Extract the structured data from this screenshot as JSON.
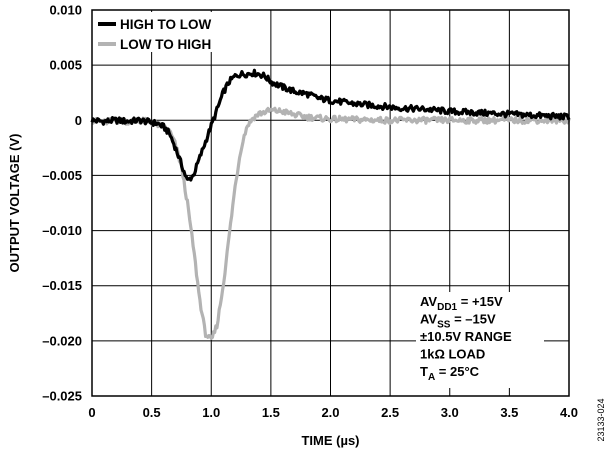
{
  "figure_id": "23133-024",
  "chart_data": {
    "type": "line",
    "xlabel": "TIME (µs)",
    "ylabel": "OUTPUT VOLTAGE (V)",
    "xlim": [
      0,
      4.0
    ],
    "ylim": [
      -0.025,
      0.01
    ],
    "x_ticks": [
      0,
      0.5,
      1.0,
      1.5,
      2.0,
      2.5,
      3.0,
      3.5,
      4.0
    ],
    "x_tick_labels": [
      "0",
      "0.5",
      "1.0",
      "1.5",
      "2.0",
      "2.5",
      "3.0",
      "3.5",
      "4.0"
    ],
    "y_ticks": [
      0.01,
      0.005,
      0,
      -0.005,
      -0.01,
      -0.015,
      -0.02,
      -0.025
    ],
    "y_tick_labels": [
      "0.010",
      "0.005",
      "0",
      "–0.005",
      "–0.010",
      "–0.015",
      "–0.020",
      "–0.025"
    ],
    "grid": true,
    "legend_position": "top-left",
    "series": [
      {
        "name": "HIGH TO LOW",
        "color": "#000000",
        "x": [
          0,
          0.1,
          0.2,
          0.3,
          0.4,
          0.5,
          0.55,
          0.6,
          0.65,
          0.7,
          0.75,
          0.8,
          0.85,
          0.9,
          0.95,
          1.0,
          1.05,
          1.1,
          1.15,
          1.2,
          1.25,
          1.3,
          1.35,
          1.4,
          1.45,
          1.5,
          1.6,
          1.7,
          1.8,
          1.9,
          2.0,
          2.2,
          2.4,
          2.6,
          2.8,
          3.0,
          3.2,
          3.4,
          3.6,
          3.8,
          4.0
        ],
        "y": [
          0,
          -0.0001,
          0,
          -0.0001,
          0,
          -0.0002,
          -0.0003,
          -0.0006,
          -0.0012,
          -0.0025,
          -0.004,
          -0.0055,
          -0.005,
          -0.0035,
          -0.002,
          -0.0005,
          0.001,
          0.0025,
          0.0035,
          0.004,
          0.0042,
          0.0042,
          0.0043,
          0.0042,
          0.004,
          0.0035,
          0.003,
          0.0026,
          0.0024,
          0.002,
          0.0018,
          0.0015,
          0.0013,
          0.0011,
          0.001,
          0.0008,
          0.0007,
          0.0006,
          0.0005,
          0.0004,
          0.0003
        ]
      },
      {
        "name": "LOW TO HIGH",
        "color": "#b3b3b3",
        "x": [
          0,
          0.1,
          0.2,
          0.3,
          0.4,
          0.5,
          0.6,
          0.65,
          0.7,
          0.75,
          0.8,
          0.85,
          0.9,
          0.95,
          1.0,
          1.05,
          1.1,
          1.15,
          1.2,
          1.25,
          1.3,
          1.35,
          1.4,
          1.5,
          1.6,
          1.7,
          1.8,
          2.0,
          2.5,
          3.0,
          3.5,
          4.0
        ],
        "y": [
          0,
          -0.0002,
          0,
          -0.0001,
          0,
          -0.0002,
          -0.0006,
          -0.001,
          -0.0022,
          -0.0042,
          -0.0075,
          -0.0115,
          -0.016,
          -0.0193,
          -0.02,
          -0.0185,
          -0.015,
          -0.0105,
          -0.006,
          -0.0025,
          -0.0005,
          0.0002,
          0.0006,
          0.0009,
          0.0008,
          0.0005,
          0.0003,
          0.0001,
          0,
          0,
          0,
          0
        ]
      }
    ],
    "annotations": [
      {
        "text": "AVDD1 = +15V",
        "main": "AV",
        "sub": "DD1",
        "rest": " = +15V"
      },
      {
        "text": "AVSS = –15V",
        "main": "AV",
        "sub": "SS",
        "rest": " = –15V"
      },
      {
        "text": "±10.5V RANGE",
        "main": "±10.5V RANGE",
        "sub": "",
        "rest": ""
      },
      {
        "text": "1kΩ LOAD",
        "main": "1kΩ LOAD",
        "sub": "",
        "rest": ""
      },
      {
        "text": "TA = 25°C",
        "main": "T",
        "sub": "A",
        "rest": " = 25°C"
      }
    ]
  }
}
